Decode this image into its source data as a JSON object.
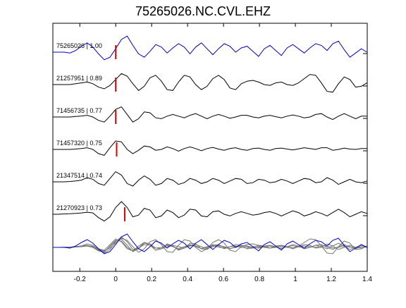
{
  "chart_data": {
    "type": "line",
    "title": "75265026.NC.CVL.EHZ",
    "xlabel": "",
    "ylabel": "",
    "xlim": [
      -0.35,
      1.4
    ],
    "xticks": [
      "-0.2",
      "0",
      "0.2",
      "0.4",
      "0.6",
      "0.8",
      "1",
      "1.2",
      "1.4"
    ],
    "xtick_values": [
      -0.2,
      0,
      0.2,
      0.4,
      0.6,
      0.8,
      1.0,
      1.2,
      1.4
    ],
    "grid": false,
    "legend": "none",
    "colors": {
      "reference": "#0000cc",
      "trace": "#000000",
      "stack_trace": "#777777",
      "pick": "#dd0000"
    },
    "series": [
      {
        "name": "75265026 | 1.00",
        "pick_time": 0.0,
        "color": "reference",
        "values": [
          0,
          0,
          0,
          -0.05,
          0.1,
          0.35,
          0.55,
          0.3,
          -0.1,
          -0.45,
          -0.3,
          0.2,
          0.75,
          0.95,
          0.4,
          -0.1,
          -0.3,
          0.05,
          0.45,
          0.3,
          -0.05,
          0.25,
          0.5,
          0.3,
          -0.1,
          0.3,
          0.55,
          0.2,
          -0.15,
          0.2,
          0.5,
          0.35,
          0.0,
          0.25,
          0.35,
          0.05,
          -0.25,
          0.2,
          0.4,
          0.1,
          -0.2,
          0.25,
          0.45,
          0.2,
          -0.05,
          0.25,
          0.5,
          0.4,
          0.1,
          0.5,
          0.65,
          0.15,
          -0.3,
          -0.05,
          0.2,
          0.0
        ]
      },
      {
        "name": "21257951 | 0.89",
        "pick_time": 0.0,
        "color": "trace",
        "values": [
          0,
          0,
          0,
          0,
          0.05,
          0.1,
          0.15,
          0.05,
          -0.15,
          -0.25,
          -0.05,
          0.3,
          0.65,
          0.5,
          0.05,
          -0.35,
          -0.1,
          0.4,
          0.55,
          0.2,
          -0.3,
          -0.35,
          0.15,
          0.55,
          0.45,
          0.0,
          -0.3,
          -0.1,
          0.35,
          0.55,
          0.3,
          -0.2,
          -0.3,
          0.05,
          0.2,
          0.25,
          0.15,
          0.0,
          -0.05,
          0.1,
          0.15,
          0.0,
          -0.05,
          0.1,
          0.35,
          0.6,
          0.55,
          0.1,
          -0.4,
          -0.45,
          0.05,
          0.45,
          0.3,
          -0.15,
          -0.1,
          0.1
        ]
      },
      {
        "name": "71456735 | 0.77",
        "pick_time": 0.0,
        "color": "trace",
        "values": [
          0,
          0,
          0,
          0,
          0.03,
          0.06,
          0.1,
          0.0,
          -0.2,
          -0.3,
          0.05,
          0.45,
          0.6,
          0.15,
          -0.3,
          -0.1,
          0.3,
          0.25,
          -0.05,
          -0.1,
          0.05,
          0.15,
          0.05,
          -0.05,
          0.1,
          0.2,
          0.05,
          -0.1,
          0.05,
          0.15,
          0.05,
          -0.08,
          0.0,
          0.1,
          0.1,
          0.0,
          -0.05,
          0.05,
          0.1,
          0.02,
          -0.05,
          0.05,
          0.12,
          0.05,
          -0.05,
          0.0,
          0.15,
          0.2,
          0.0,
          -0.15,
          0.05,
          0.2,
          0.05,
          -0.1,
          0.05,
          0.05
        ]
      },
      {
        "name": "71457320 | 0.75",
        "pick_time": 0.005,
        "color": "trace",
        "values": [
          0,
          0,
          0,
          0,
          0.02,
          0.05,
          0.1,
          0.0,
          -0.25,
          -0.35,
          0.1,
          0.5,
          0.45,
          0.0,
          -0.25,
          -0.05,
          0.2,
          0.15,
          -0.05,
          0.0,
          0.15,
          0.05,
          -0.1,
          0.05,
          0.15,
          0.05,
          -0.08,
          0.05,
          0.12,
          0.02,
          -0.05,
          0.05,
          0.1,
          0.0,
          -0.05,
          0.05,
          0.08,
          0.0,
          -0.05,
          0.05,
          0.08,
          0.02,
          -0.03,
          0.03,
          0.1,
          0.05,
          0.0,
          0.1,
          0.1,
          -0.05,
          0.0,
          0.08,
          0.02,
          0.0,
          0.05,
          0.05
        ]
      },
      {
        "name": "21347514 | 0.74",
        "pick_time": null,
        "color": "trace",
        "values": [
          0,
          0,
          0,
          0.02,
          0.05,
          0.1,
          0.25,
          0.15,
          -0.1,
          -0.2,
          0.2,
          0.6,
          0.4,
          -0.1,
          -0.25,
          0.1,
          0.35,
          0.15,
          -0.2,
          -0.1,
          0.2,
          0.1,
          -0.15,
          -0.05,
          0.2,
          0.1,
          -0.1,
          0.0,
          0.2,
          0.1,
          -0.1,
          0.05,
          0.2,
          0.15,
          -0.1,
          -0.05,
          0.15,
          0.1,
          -0.05,
          0.0,
          0.15,
          0.05,
          -0.1,
          0.05,
          0.2,
          0.15,
          -0.05,
          0.0,
          0.25,
          0.1,
          -0.15,
          0.0,
          0.15,
          0.0,
          -0.05,
          0.05
        ]
      },
      {
        "name": "21270923 | 0.73",
        "pick_time": 0.05,
        "color": "trace",
        "values": [
          0,
          0,
          0.02,
          0.03,
          0.05,
          0.08,
          0.12,
          0.08,
          -0.2,
          -0.4,
          -0.15,
          0.4,
          0.75,
          0.4,
          -0.15,
          -0.05,
          0.35,
          0.25,
          -0.2,
          -0.1,
          0.25,
          0.1,
          -0.2,
          -0.05,
          0.3,
          0.25,
          -0.1,
          -0.15,
          0.15,
          0.2,
          0.0,
          -0.1,
          0.05,
          0.15,
          0.05,
          -0.05,
          0.0,
          0.1,
          0.15,
          0.05,
          -0.1,
          0.05,
          0.2,
          0.1,
          -0.1,
          0.0,
          0.15,
          0.05,
          -0.1,
          0.1,
          0.3,
          0.1,
          -0.15,
          0.0,
          0.15,
          0.05
        ]
      }
    ],
    "x_sample_start": -0.35,
    "x_sample_step": 0.0318
  }
}
